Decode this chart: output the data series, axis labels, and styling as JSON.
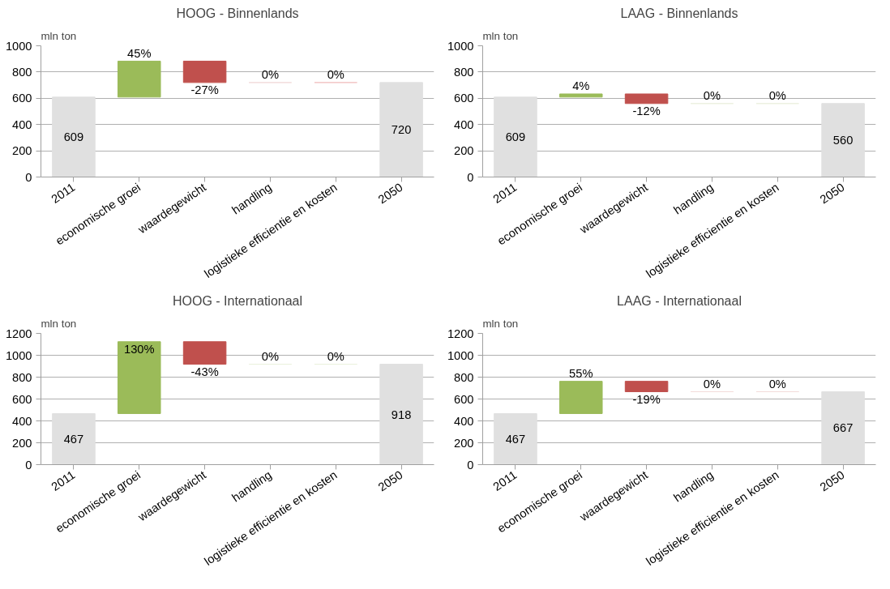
{
  "chart_data": [
    {
      "type": "bar",
      "title": "HOOG - Binnenlands",
      "ylabel": "mln ton",
      "categories": [
        "2011",
        "economische groei",
        "waardegewicht",
        "handling",
        "logistieke efficientie en kosten",
        "2050"
      ],
      "base": [
        0,
        609,
        883,
        720,
        720,
        0
      ],
      "values": [
        609,
        274,
        -163,
        0,
        0,
        720
      ],
      "colors": [
        "#e0e0e0",
        "#9bbb59",
        "#c0504d",
        "#f2dcdb",
        "#f2c4c4",
        "#e0e0e0"
      ],
      "value_labels": [
        "609",
        null,
        null,
        null,
        null,
        "720"
      ],
      "annotations": [
        {
          "text": "45%",
          "x": "economische groei",
          "y": 883
        },
        {
          "text": "-27%",
          "x": "waardegewicht",
          "y": 720
        },
        {
          "text": "0%",
          "x": "handling",
          "y": 720
        },
        {
          "text": "0%",
          "x": "logistieke efficientie en kosten",
          "y": 720
        }
      ],
      "ylim": [
        0,
        1000
      ],
      "yticks": [
        0,
        200,
        400,
        600,
        800,
        1000
      ],
      "grid": "y"
    },
    {
      "type": "bar",
      "title": "LAAG - Binnenlands",
      "ylabel": "mln ton",
      "categories": [
        "2011",
        "economische groei",
        "waardegewicht",
        "handling",
        "logistieke efficientie en kosten",
        "2050"
      ],
      "base": [
        0,
        609,
        633,
        560,
        560,
        0
      ],
      "values": [
        609,
        24,
        -73,
        0,
        0,
        560
      ],
      "colors": [
        "#e0e0e0",
        "#9bbb59",
        "#c0504d",
        "#ebf1de",
        "#ebf1de",
        "#e0e0e0"
      ],
      "value_labels": [
        "609",
        null,
        null,
        null,
        null,
        "560"
      ],
      "annotations": [
        {
          "text": "4%",
          "x": "economische groei",
          "y": 633
        },
        {
          "text": "-12%",
          "x": "waardegewicht",
          "y": 560
        },
        {
          "text": "0%",
          "x": "handling",
          "y": 560
        },
        {
          "text": "0%",
          "x": "logistieke efficientie en kosten",
          "y": 560
        }
      ],
      "ylim": [
        0,
        1000
      ],
      "yticks": [
        0,
        200,
        400,
        600,
        800,
        1000
      ],
      "grid": "y"
    },
    {
      "type": "bar",
      "title": "HOOG - Internationaal",
      "ylabel": "mln ton",
      "categories": [
        "2011",
        "economische groei",
        "waardegewicht",
        "handling",
        "logistieke efficientie en kosten",
        "2050"
      ],
      "base": [
        0,
        467,
        1124,
        918,
        918,
        0
      ],
      "values": [
        467,
        657,
        -206,
        0,
        0,
        918
      ],
      "colors": [
        "#e0e0e0",
        "#9bbb59",
        "#c0504d",
        "#ebf1de",
        "#ebf1de",
        "#e0e0e0"
      ],
      "value_labels": [
        "467",
        null,
        null,
        null,
        null,
        "918"
      ],
      "annotations": [
        {
          "text": "130%",
          "x": "economische groei",
          "y": 1124
        },
        {
          "text": "-43%",
          "x": "waardegewicht",
          "y": 918
        },
        {
          "text": "0%",
          "x": "handling",
          "y": 918
        },
        {
          "text": "0%",
          "x": "logistieke efficientie en kosten",
          "y": 918
        }
      ],
      "ylim": [
        0,
        1200
      ],
      "yticks": [
        0,
        200,
        400,
        600,
        800,
        1000,
        1200
      ],
      "grid": "y"
    },
    {
      "type": "bar",
      "title": "LAAG - Internationaal",
      "ylabel": "mln ton",
      "categories": [
        "2011",
        "economische groei",
        "waardegewicht",
        "handling",
        "logistieke efficientie en kosten",
        "2050"
      ],
      "base": [
        0,
        467,
        762,
        667,
        667,
        0
      ],
      "values": [
        467,
        295,
        -95,
        0,
        0,
        667
      ],
      "colors": [
        "#e0e0e0",
        "#9bbb59",
        "#c0504d",
        "#f2dcdb",
        "#f2dcdb",
        "#e0e0e0"
      ],
      "value_labels": [
        "467",
        null,
        null,
        null,
        null,
        "667"
      ],
      "annotations": [
        {
          "text": "55%",
          "x": "economische groei",
          "y": 762
        },
        {
          "text": "-19%",
          "x": "waardegewicht",
          "y": 667
        },
        {
          "text": "0%",
          "x": "handling",
          "y": 667
        },
        {
          "text": "0%",
          "x": "logistieke efficientie en kosten",
          "y": 667
        }
      ],
      "ylim": [
        0,
        1200
      ],
      "yticks": [
        0,
        200,
        400,
        600,
        800,
        1000,
        1200
      ],
      "grid": "y"
    }
  ]
}
